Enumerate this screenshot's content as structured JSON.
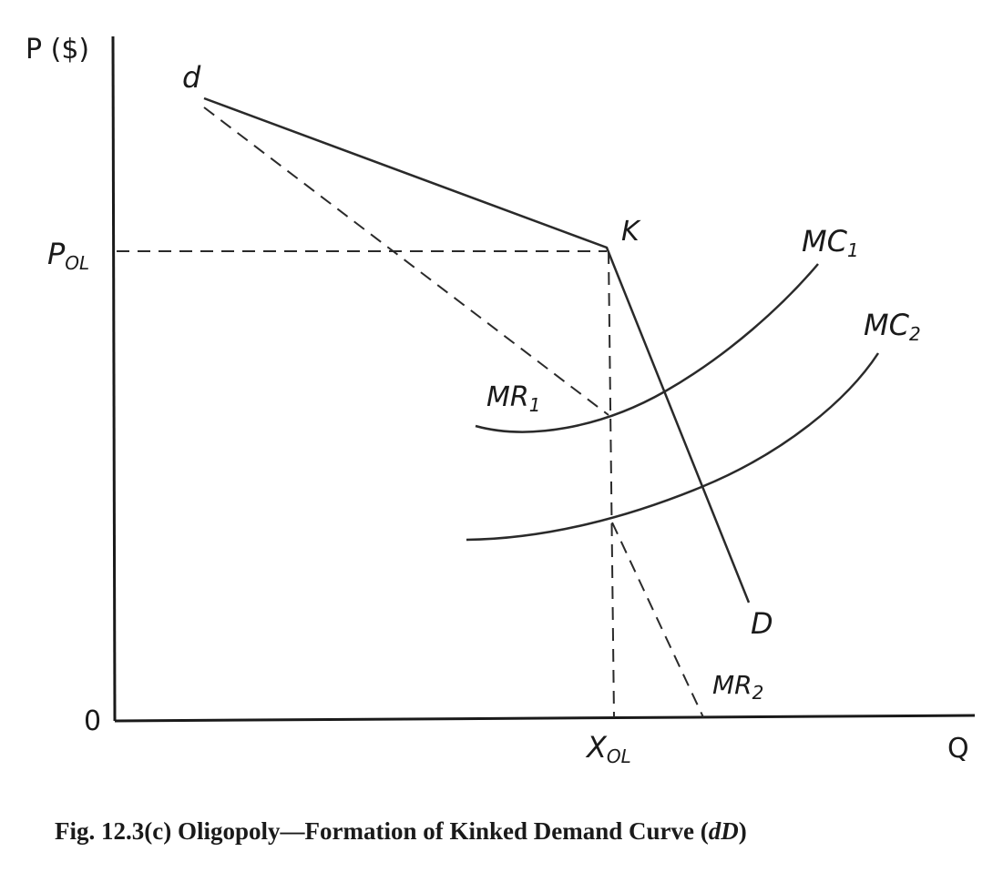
{
  "axes": {
    "y_label": "P ($)",
    "x_label": "Q",
    "origin": "0"
  },
  "labels": {
    "d": "d",
    "k": "K",
    "big_d": "D",
    "p_ol_main": "P",
    "p_ol_sub": "OL",
    "x_ol_main": "X",
    "x_ol_sub": "OL",
    "mc1_main": "MC",
    "mc1_sub": "1",
    "mc2_main": "MC",
    "mc2_sub": "2",
    "mr1_main": "MR",
    "mr1_sub": "1",
    "mr2_main": "MR",
    "mr2_sub": "2"
  },
  "caption": {
    "prefix": "Fig. 12.3(c) Oligopoly—Formation of Kinked Demand Curve (",
    "italic": "dD",
    "suffix": ")"
  }
}
